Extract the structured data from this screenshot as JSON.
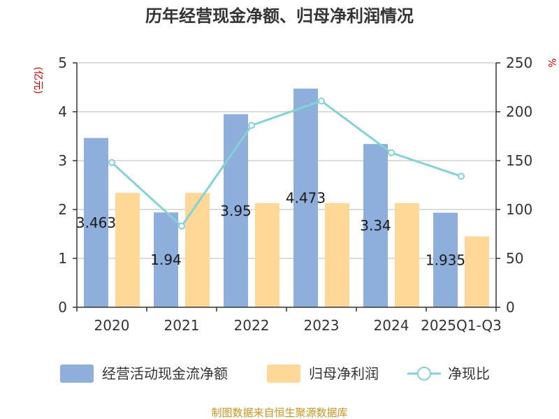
{
  "title": "历年经营现金净额、归母净利润情况",
  "source": "制图数据来自恒生聚源数据库",
  "colors": {
    "cash": "#8eaedb",
    "profit": "#ffd898",
    "ratio": "#84d1d6",
    "unit": "#cc0000",
    "source": "#c8961e"
  },
  "chart_data": {
    "type": "bar",
    "title": "历年经营现金净额、归母净利润情况",
    "categories": [
      "2020",
      "2021",
      "2022",
      "2023",
      "2024",
      "2025Q1-Q3"
    ],
    "y_left": {
      "unit": "(亿元)",
      "ylim": [
        0,
        5
      ],
      "ticks": [
        "0",
        "1",
        "2",
        "3",
        "4",
        "5"
      ]
    },
    "y_right": {
      "unit": "%",
      "ylim": [
        0,
        250
      ],
      "ticks": [
        "0",
        "50",
        "100",
        "150",
        "200",
        "250"
      ]
    },
    "series": [
      {
        "name": "经营活动现金流净额",
        "kind": "bar",
        "axis": "left",
        "values": [
          3.463,
          1.94,
          3.95,
          4.473,
          3.34,
          1.935
        ],
        "labels": [
          "3.463",
          "1.94",
          "3.95",
          "4.473",
          "3.34",
          "1.935"
        ]
      },
      {
        "name": "归母净利润",
        "kind": "bar",
        "axis": "left",
        "values": [
          2.34,
          2.34,
          2.13,
          2.13,
          2.13,
          1.45
        ]
      },
      {
        "name": "净现比",
        "kind": "line",
        "axis": "right",
        "values": [
          148,
          83,
          186,
          211,
          158,
          134
        ]
      }
    ],
    "grid": true,
    "legend": "bottom"
  }
}
